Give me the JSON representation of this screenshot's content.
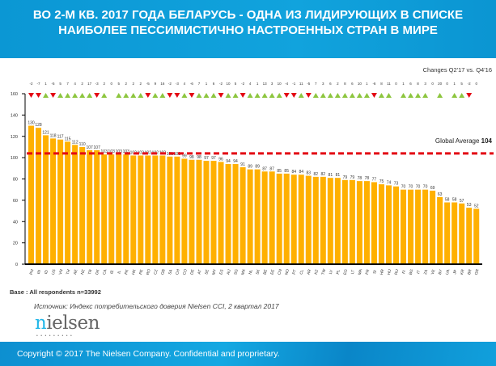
{
  "header": {
    "title_line1": "ВО 2-М КВ. 2017 ГОДА БЕЛАРУСЬ - ОДНА ИЗ ЛИДИРУЮЩИХ В СПИСКЕ",
    "title_line2": "НАИБОЛЕЕ ПЕССИМИСТИЧНО НАСТРОЕННЫХ СТРАН В МИРЕ"
  },
  "chart_data": {
    "type": "bar",
    "title": "",
    "changes_label": "Changes Q2'17 vs. Q4'16",
    "reference_line": {
      "label": "Global Average",
      "value": 104,
      "color": "#e30613"
    },
    "ylim": [
      0,
      160
    ],
    "yticks": [
      0,
      20,
      40,
      60,
      80,
      100,
      120,
      140,
      160
    ],
    "bar_color": "#ffb000",
    "up_color": "#8dc63f",
    "down_color": "#e30613",
    "categories": [
      "PH",
      "IN",
      "ID",
      "US",
      "VN",
      "TH",
      "AE",
      "NZ",
      "TR",
      "DK",
      "CA",
      "IE",
      "IL",
      "PK",
      "HK",
      "PE",
      "RO",
      "CZ",
      "GB",
      "SA",
      "CH",
      "CO",
      "DE",
      "AT",
      "SE",
      "MY",
      "ES",
      "AU",
      "SG",
      "MX",
      "NL",
      "SK",
      "BE",
      "EE",
      "CN",
      "NO",
      "PT",
      "CL",
      "AR",
      "KZ",
      "TW",
      "LV",
      "PL",
      "EG",
      "LT",
      "MA",
      "FR",
      "SI",
      "HR",
      "HU",
      "RU",
      "FI",
      "BG",
      "IT",
      "ZA",
      "VE",
      "BY",
      "UA",
      "JP",
      "KR",
      "BR",
      "GR"
    ],
    "values": [
      130,
      128,
      121,
      118,
      117,
      115,
      112,
      110,
      107,
      107,
      103,
      103,
      103,
      103,
      102,
      102,
      102,
      102,
      102,
      101,
      101,
      99,
      98,
      98,
      97,
      97,
      96,
      94,
      94,
      91,
      89,
      89,
      87,
      87,
      85,
      85,
      84,
      84,
      83,
      82,
      82,
      81,
      81,
      79,
      79,
      78,
      78,
      77,
      75,
      74,
      73,
      70,
      70,
      70,
      70,
      69,
      63,
      58,
      58,
      57,
      53,
      52
    ],
    "changes": [
      -2,
      -7,
      1,
      -5,
      5,
      7,
      4,
      2,
      17,
      -3,
      2,
      0,
      5,
      2,
      2,
      2,
      -5,
      9,
      16,
      -2,
      -3,
      4,
      -6,
      7,
      1,
      6,
      -2,
      10,
      5,
      -2,
      4,
      1,
      13,
      3,
      10,
      -4,
      -1,
      11,
      -5,
      7,
      3,
      6,
      2,
      8,
      6,
      10,
      1,
      -6,
      8,
      11,
      0,
      1,
      6,
      8,
      3,
      0,
      20,
      0,
      1,
      5,
      -2,
      0
    ]
  },
  "notes": {
    "base": "Base : All respondents n=33992",
    "source": "Источник: Индекс потребительского доверия Nielsen CCI, 2 квартал 2017"
  },
  "logo": {
    "text": "nielsen"
  },
  "footer": {
    "copyright": "Copyright © 2017 The Nielsen Company. Confidential and proprietary."
  }
}
